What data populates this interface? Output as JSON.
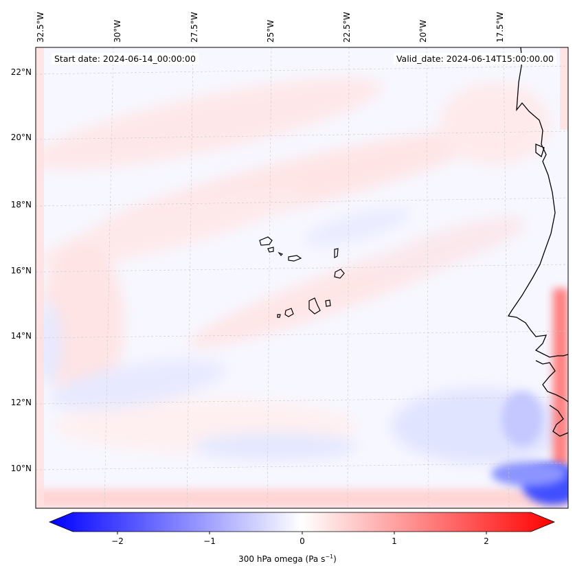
{
  "map": {
    "lon_labels": [
      "32.5°W",
      "30°W",
      "27.5°W",
      "25°W",
      "22.5°W",
      "20°W",
      "17.5°W"
    ],
    "lat_labels": [
      "22°N",
      "20°N",
      "18°N",
      "16°N",
      "14°N",
      "12°N",
      "10°N"
    ],
    "start_date": "Start date: 2024-06-14_00:00:00",
    "valid_date": "Valid_date: 2024-06-14T15:00:00.00"
  },
  "colorbar": {
    "ticks": [
      "−2",
      "−1",
      "0",
      "1",
      "2"
    ],
    "title": "300 hPa omega (Pa s",
    "title_sup": "−1",
    "title_end": ")",
    "color_low": "#0000ff",
    "color_mid": "#ffffff",
    "color_high": "#ff0000"
  }
}
